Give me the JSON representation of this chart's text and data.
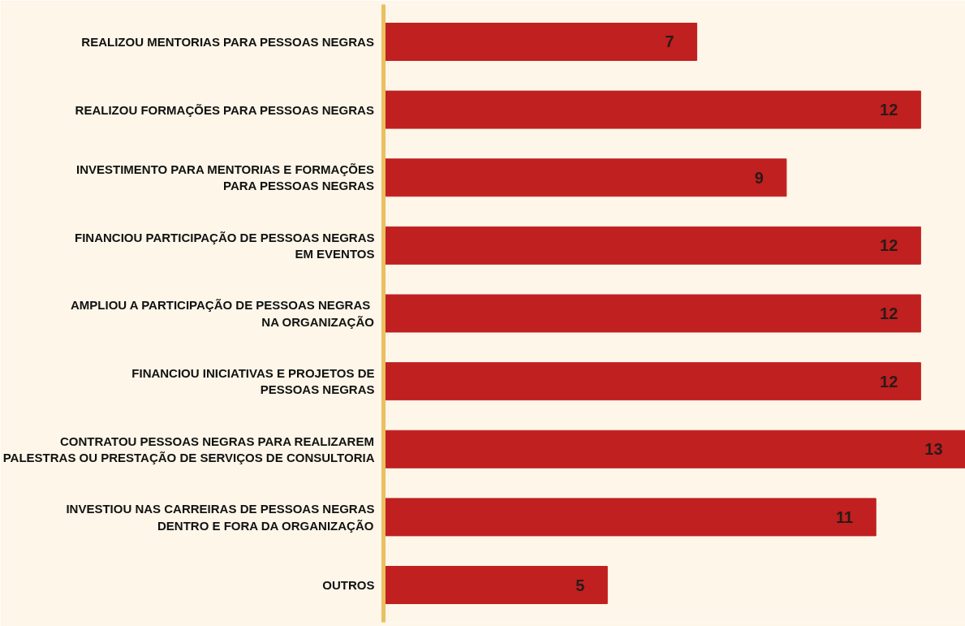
{
  "chart_data": {
    "type": "bar",
    "orientation": "horizontal",
    "data_labels": true,
    "grid": false,
    "color": "#c0201f",
    "categories": [
      "REALIZOU MENTORIAS PARA PESSOAS NEGRAS",
      "REALIZOU FORMAÇÕES PARA PESSOAS NEGRAS",
      "INVESTIMENTO PARA MENTORIAS E FORMAÇÕES\nPARA PESSOAS NEGRAS",
      "FINANCIOU PARTICIPAÇÃO DE PESSOAS NEGRAS\nEM EVENTOS",
      "AMPLIOU A  PARTICIPAÇÃO DE PESSOAS NEGRAS\nNA ORGANIZAÇÃO",
      "FINANCIOU INICIATIVAS E PROJETOS DE\nPESSOAS NEGRAS",
      "CONTRATOU PESSOAS NEGRAS PARA REALIZAREM\nPALESTRAS OU PRESTAÇÃO DE SERVIÇOS DE CONSULTORIA",
      "INVESTIOU NAS CARREIRAS DE PESSOAS NEGRAS\nDENTRO E FORA DA ORGANIZAÇÃO",
      "OUTROS"
    ],
    "values": [
      7,
      12,
      9,
      12,
      12,
      12,
      13,
      11,
      5
    ]
  }
}
